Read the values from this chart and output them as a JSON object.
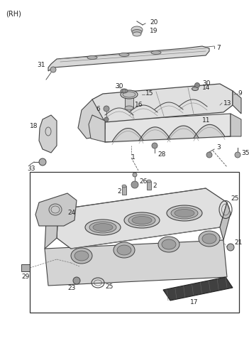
{
  "title": "(RH)",
  "bg": "#ffffff",
  "lc": "#555555",
  "tc": "#222222",
  "fw": 3.51,
  "fh": 4.8,
  "dpi": 100
}
